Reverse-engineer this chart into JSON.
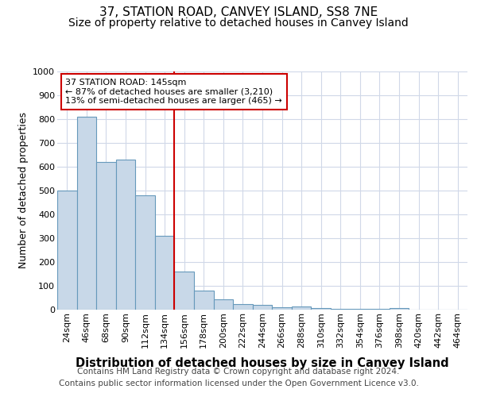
{
  "title": "37, STATION ROAD, CANVEY ISLAND, SS8 7NE",
  "subtitle": "Size of property relative to detached houses in Canvey Island",
  "xlabel": "Distribution of detached houses by size in Canvey Island",
  "ylabel": "Number of detached properties",
  "footer_line1": "Contains HM Land Registry data © Crown copyright and database right 2024.",
  "footer_line2": "Contains public sector information licensed under the Open Government Licence v3.0.",
  "bin_labels": [
    "24sqm",
    "46sqm",
    "68sqm",
    "90sqm",
    "112sqm",
    "134sqm",
    "156sqm",
    "178sqm",
    "200sqm",
    "222sqm",
    "244sqm",
    "266sqm",
    "288sqm",
    "310sqm",
    "332sqm",
    "354sqm",
    "376sqm",
    "398sqm",
    "420sqm",
    "442sqm",
    "464sqm"
  ],
  "bar_heights": [
    500,
    810,
    620,
    630,
    480,
    310,
    160,
    80,
    45,
    25,
    20,
    10,
    12,
    8,
    5,
    5,
    3,
    8,
    0,
    0,
    0
  ],
  "bar_color": "#c8d8e8",
  "bar_edge_color": "#6699bb",
  "grid_color": "#d0d8e8",
  "annotation_text": "37 STATION ROAD: 145sqm\n← 87% of detached houses are smaller (3,210)\n13% of semi-detached houses are larger (465) →",
  "annotation_box_color": "#ffffff",
  "annotation_box_edge_color": "#cc0000",
  "red_line_color": "#cc0000",
  "ylim": [
    0,
    1000
  ],
  "yticks": [
    0,
    100,
    200,
    300,
    400,
    500,
    600,
    700,
    800,
    900,
    1000
  ],
  "title_fontsize": 11,
  "subtitle_fontsize": 10,
  "xlabel_fontsize": 10.5,
  "ylabel_fontsize": 9,
  "tick_fontsize": 8,
  "footer_fontsize": 7.5,
  "ann_fontsize": 8
}
